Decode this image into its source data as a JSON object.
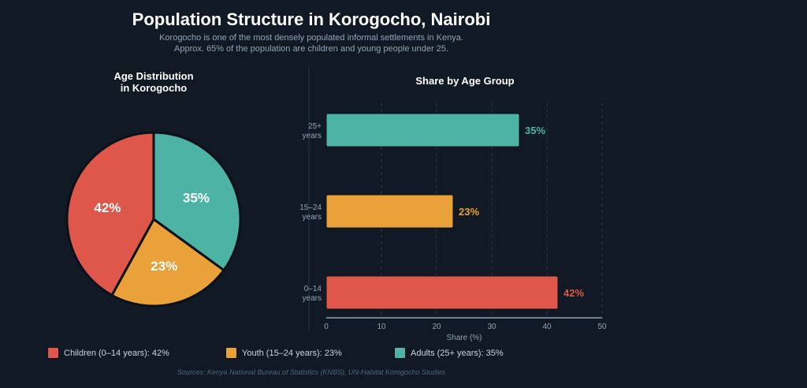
{
  "header": {
    "title": "Population Structure in Korogocho, Nairobi",
    "subtitle_lines": [
      "Korogocho is one of the most densely populated informal settlements in Kenya.",
      "Approx. 65% of the population are children and young people under 25."
    ]
  },
  "chart_data": [
    {
      "type": "pie",
      "title_lines": [
        "Age Distribution",
        "in Korogocho"
      ],
      "slices": [
        {
          "label": "Adults (25+ years)",
          "value": 35,
          "display": "35%",
          "color": "#4db3a5"
        },
        {
          "label": "Youth (15–24 years)",
          "value": 23,
          "display": "23%",
          "color": "#eba13a"
        },
        {
          "label": "Children (0–14 years)",
          "value": 42,
          "display": "42%",
          "color": "#de574a"
        }
      ]
    },
    {
      "type": "bar",
      "orientation": "horizontal",
      "title": "Share by Age Group",
      "categories": [
        [
          "25+",
          "years"
        ],
        [
          "15–24",
          "years"
        ],
        [
          "0–14",
          "years"
        ]
      ],
      "values": [
        35,
        23,
        42
      ],
      "labels": [
        "35%",
        "23%",
        "42%"
      ],
      "colors": [
        "#4db3a5",
        "#eba13a",
        "#de574a"
      ],
      "xlabel": "Share (%)",
      "xlim": [
        0,
        50
      ],
      "xticks": [
        "0",
        "10",
        "20",
        "30",
        "40",
        "50"
      ],
      "grid": true
    }
  ],
  "legend": [
    {
      "label": "Children (0–14 years): 42%",
      "color": "#de574a"
    },
    {
      "label": "Youth (15–24 years): 23%",
      "color": "#eba13a"
    },
    {
      "label": "Adults (25+ years): 35%",
      "color": "#4db3a5"
    }
  ],
  "footer": {
    "source": "Sources: Kenya National Bureau of Statistics (KNBS), UN-Habitat Korogocho Studies"
  }
}
